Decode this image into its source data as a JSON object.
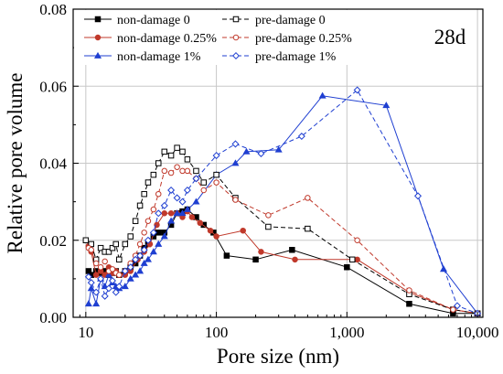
{
  "chart_data": {
    "type": "line",
    "annotation": "28d",
    "xlabel": "Pore size (nm)",
    "ylabel": "Relative pore volume",
    "x_scale": "log",
    "xlim": [
      8,
      11000
    ],
    "ylim": [
      0,
      0.08
    ],
    "x_ticks": [
      10,
      100,
      1000,
      10000
    ],
    "x_tick_labels": [
      "10",
      "100",
      "1,000",
      "10,000"
    ],
    "y_ticks": [
      0,
      0.02,
      0.04,
      0.06,
      0.08
    ],
    "y_tick_labels": [
      "0.00",
      "0.02",
      "0.04",
      "0.06",
      "0.08"
    ],
    "grid": true,
    "legend_position": "top-left",
    "series": [
      {
        "name": "non-damage 0",
        "color": "#000000",
        "dash": false,
        "marker": "square",
        "filled": true,
        "points": [
          [
            10.5,
            0.012
          ],
          [
            11,
            0.011
          ],
          [
            12,
            0.012
          ],
          [
            13,
            0.0115
          ],
          [
            14,
            0.012
          ],
          [
            15,
            0.011
          ],
          [
            16,
            0.0115
          ],
          [
            17,
            0.012
          ],
          [
            18,
            0.011
          ],
          [
            20,
            0.012
          ],
          [
            22,
            0.013
          ],
          [
            24,
            0.014
          ],
          [
            26,
            0.016
          ],
          [
            28,
            0.018
          ],
          [
            30,
            0.019
          ],
          [
            33,
            0.021
          ],
          [
            36,
            0.022
          ],
          [
            40,
            0.022
          ],
          [
            45,
            0.024
          ],
          [
            50,
            0.027
          ],
          [
            55,
            0.0275
          ],
          [
            60,
            0.028
          ],
          [
            70,
            0.026
          ],
          [
            80,
            0.024
          ],
          [
            95,
            0.022
          ],
          [
            120,
            0.016
          ],
          [
            200,
            0.015
          ],
          [
            380,
            0.0175
          ],
          [
            1000,
            0.013
          ],
          [
            3000,
            0.0035
          ],
          [
            6500,
            0.001
          ],
          [
            10000,
            0.001
          ]
        ]
      },
      {
        "name": "non-damage 0.25%",
        "color": "#c0392b",
        "dash": false,
        "marker": "circle",
        "filled": true,
        "points": [
          [
            10.5,
            0.0185
          ],
          [
            11,
            0.017
          ],
          [
            12,
            0.011
          ],
          [
            13,
            0.012
          ],
          [
            14,
            0.011
          ],
          [
            15,
            0.013
          ],
          [
            16,
            0.0115
          ],
          [
            17,
            0.012
          ],
          [
            18,
            0.011
          ],
          [
            20,
            0.011
          ],
          [
            22,
            0.012
          ],
          [
            25,
            0.015
          ],
          [
            28,
            0.017
          ],
          [
            31,
            0.019
          ],
          [
            35,
            0.024
          ],
          [
            40,
            0.027
          ],
          [
            45,
            0.027
          ],
          [
            50,
            0.027
          ],
          [
            55,
            0.026
          ],
          [
            60,
            0.0275
          ],
          [
            65,
            0.026
          ],
          [
            75,
            0.0245
          ],
          [
            90,
            0.0225
          ],
          [
            100,
            0.021
          ],
          [
            160,
            0.0225
          ],
          [
            220,
            0.017
          ],
          [
            400,
            0.015
          ],
          [
            1200,
            0.015
          ],
          [
            3000,
            0.0065
          ],
          [
            6500,
            0.002
          ],
          [
            10000,
            0.001
          ]
        ]
      },
      {
        "name": "non-damage 1%",
        "color": "#1f3fd1",
        "dash": false,
        "marker": "triangle",
        "filled": true,
        "points": [
          [
            10.5,
            0.0035
          ],
          [
            11,
            0.0075
          ],
          [
            12,
            0.0035
          ],
          [
            13,
            0.01
          ],
          [
            14,
            0.008
          ],
          [
            15,
            0.011
          ],
          [
            16,
            0.009
          ],
          [
            17,
            0.008
          ],
          [
            18,
            0.0075
          ],
          [
            20,
            0.008
          ],
          [
            22,
            0.01
          ],
          [
            24,
            0.011
          ],
          [
            26,
            0.012
          ],
          [
            28,
            0.014
          ],
          [
            30,
            0.015
          ],
          [
            33,
            0.017
          ],
          [
            36,
            0.019
          ],
          [
            40,
            0.021
          ],
          [
            45,
            0.025
          ],
          [
            50,
            0.027
          ],
          [
            55,
            0.027
          ],
          [
            60,
            0.028
          ],
          [
            70,
            0.03
          ],
          [
            100,
            0.037
          ],
          [
            140,
            0.04
          ],
          [
            170,
            0.043
          ],
          [
            300,
            0.0435
          ],
          [
            650,
            0.0575
          ],
          [
            2000,
            0.055
          ],
          [
            5500,
            0.0125
          ],
          [
            10000,
            0.001
          ]
        ]
      },
      {
        "name": "pre-damage 0",
        "color": "#000000",
        "dash": true,
        "marker": "square",
        "filled": false,
        "points": [
          [
            10,
            0.02
          ],
          [
            11,
            0.019
          ],
          [
            12,
            0.015
          ],
          [
            13,
            0.018
          ],
          [
            14,
            0.017
          ],
          [
            15,
            0.017
          ],
          [
            16,
            0.018
          ],
          [
            17,
            0.019
          ],
          [
            18,
            0.015
          ],
          [
            20,
            0.019
          ],
          [
            22,
            0.021
          ],
          [
            24,
            0.025
          ],
          [
            26,
            0.029
          ],
          [
            28,
            0.032
          ],
          [
            30,
            0.035
          ],
          [
            33,
            0.037
          ],
          [
            36,
            0.04
          ],
          [
            40,
            0.043
          ],
          [
            45,
            0.042
          ],
          [
            50,
            0.044
          ],
          [
            55,
            0.043
          ],
          [
            60,
            0.041
          ],
          [
            70,
            0.038
          ],
          [
            80,
            0.035
          ],
          [
            100,
            0.037
          ],
          [
            140,
            0.031
          ],
          [
            250,
            0.0235
          ],
          [
            500,
            0.023
          ],
          [
            1100,
            0.015
          ],
          [
            3000,
            0.006
          ],
          [
            6500,
            0.002
          ],
          [
            10000,
            0.001
          ]
        ]
      },
      {
        "name": "pre-damage 0.25%",
        "color": "#c0392b",
        "dash": true,
        "marker": "circle",
        "filled": false,
        "points": [
          [
            10.5,
            0.018
          ],
          [
            11,
            0.0175
          ],
          [
            12,
            0.014
          ],
          [
            13,
            0.013
          ],
          [
            14,
            0.0145
          ],
          [
            15,
            0.012
          ],
          [
            16,
            0.0125
          ],
          [
            17,
            0.0115
          ],
          [
            18,
            0.011
          ],
          [
            20,
            0.012
          ],
          [
            22,
            0.014
          ],
          [
            24,
            0.016
          ],
          [
            26,
            0.019
          ],
          [
            28,
            0.022
          ],
          [
            30,
            0.025
          ],
          [
            33,
            0.028
          ],
          [
            36,
            0.032
          ],
          [
            40,
            0.038
          ],
          [
            45,
            0.0375
          ],
          [
            50,
            0.039
          ],
          [
            55,
            0.038
          ],
          [
            60,
            0.038
          ],
          [
            70,
            0.036
          ],
          [
            80,
            0.033
          ],
          [
            100,
            0.035
          ],
          [
            140,
            0.0305
          ],
          [
            250,
            0.0265
          ],
          [
            500,
            0.031
          ],
          [
            1200,
            0.02
          ],
          [
            3000,
            0.007
          ],
          [
            6500,
            0.002
          ],
          [
            10000,
            0.001
          ]
        ]
      },
      {
        "name": "pre-damage 1%",
        "color": "#1f3fd1",
        "dash": true,
        "marker": "diamond",
        "filled": false,
        "points": [
          [
            10.5,
            0.0105
          ],
          [
            11,
            0.009
          ],
          [
            12,
            0.0065
          ],
          [
            13,
            0.01
          ],
          [
            14,
            0.0055
          ],
          [
            15,
            0.0075
          ],
          [
            16,
            0.0095
          ],
          [
            17,
            0.0065
          ],
          [
            18,
            0.008
          ],
          [
            20,
            0.012
          ],
          [
            22,
            0.013
          ],
          [
            24,
            0.015
          ],
          [
            26,
            0.016
          ],
          [
            28,
            0.0175
          ],
          [
            30,
            0.02
          ],
          [
            33,
            0.022
          ],
          [
            36,
            0.027
          ],
          [
            40,
            0.029
          ],
          [
            45,
            0.033
          ],
          [
            50,
            0.031
          ],
          [
            55,
            0.03
          ],
          [
            60,
            0.033
          ],
          [
            70,
            0.036
          ],
          [
            100,
            0.042
          ],
          [
            140,
            0.045
          ],
          [
            220,
            0.0425
          ],
          [
            450,
            0.047
          ],
          [
            1200,
            0.059
          ],
          [
            3500,
            0.0315
          ],
          [
            7000,
            0.003
          ],
          [
            10000,
            0.001
          ]
        ]
      }
    ]
  }
}
